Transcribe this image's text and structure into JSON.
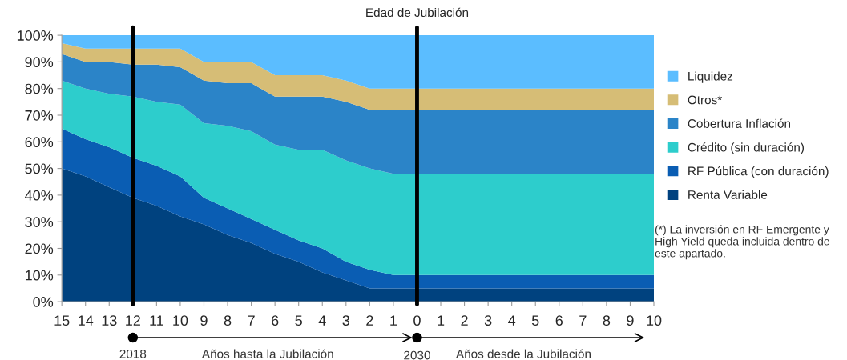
{
  "chart_data": {
    "type": "area",
    "stacked": true,
    "categories": [
      "15",
      "14",
      "13",
      "12",
      "11",
      "10",
      "9",
      "8",
      "7",
      "6",
      "5",
      "4",
      "3",
      "2",
      "1",
      "0",
      "1",
      "2",
      "3",
      "4",
      "5",
      "6",
      "7",
      "8",
      "9",
      "10"
    ],
    "series": [
      {
        "name": "Renta Variable",
        "color": "#00427f",
        "values": [
          50,
          47,
          43,
          39,
          36,
          32,
          29,
          25,
          22,
          18,
          15,
          11,
          8,
          5,
          5,
          5,
          5,
          5,
          5,
          5,
          5,
          5,
          5,
          5,
          5,
          5
        ]
      },
      {
        "name": "RF Pública (con duración)",
        "color": "#0a5db3",
        "values": [
          15,
          14,
          15,
          15,
          15,
          15,
          10,
          10,
          9,
          9,
          8,
          9,
          7,
          7,
          5,
          5,
          5,
          5,
          5,
          5,
          5,
          5,
          5,
          5,
          5,
          5
        ]
      },
      {
        "name": "Crédito (sin duración)",
        "color": "#2dcdcc",
        "values": [
          18,
          19,
          20,
          23,
          24,
          27,
          28,
          31,
          33,
          32,
          34,
          37,
          38,
          38,
          38,
          38,
          38,
          38,
          38,
          38,
          38,
          38,
          38,
          38,
          38,
          38
        ]
      },
      {
        "name": "Cobertura Inflación",
        "color": "#2b84c8",
        "values": [
          10,
          10,
          12,
          12,
          14,
          14,
          16,
          16,
          18,
          18,
          20,
          20,
          22,
          22,
          24,
          24,
          24,
          24,
          24,
          24,
          24,
          24,
          24,
          24,
          24,
          24
        ]
      },
      {
        "name": "Otros*",
        "color": "#d6bd76",
        "values": [
          4,
          5,
          5,
          6,
          6,
          7,
          7,
          8,
          8,
          8,
          8,
          8,
          8,
          8,
          8,
          8,
          8,
          8,
          8,
          8,
          8,
          8,
          8,
          8,
          8,
          8
        ]
      },
      {
        "name": "Liquidez",
        "color": "#5bbdff",
        "values": [
          3,
          5,
          5,
          5,
          5,
          5,
          10,
          10,
          10,
          15,
          15,
          15,
          17,
          20,
          20,
          20,
          20,
          20,
          20,
          20,
          20,
          20,
          20,
          20,
          20,
          20
        ]
      }
    ],
    "ylim": [
      0,
      100
    ],
    "yticks": [
      {
        "value": 0,
        "label": "0%"
      },
      {
        "value": 10,
        "label": "10%"
      },
      {
        "value": 20,
        "label": "20%"
      },
      {
        "value": 30,
        "label": "30%"
      },
      {
        "value": 40,
        "label": "40%"
      },
      {
        "value": 50,
        "label": "50%"
      },
      {
        "value": 60,
        "label": "60%"
      },
      {
        "value": 70,
        "label": "70%"
      },
      {
        "value": 80,
        "label": "80%"
      },
      {
        "value": 90,
        "label": "90%"
      },
      {
        "value": 100,
        "label": "100%"
      }
    ],
    "ref_lines": [
      {
        "axis": "x",
        "value": "12",
        "color": "#000000"
      },
      {
        "axis": "x",
        "value": "0",
        "label": "Edad de Jubilación",
        "color": "#000000"
      }
    ],
    "annotations": [
      "2018",
      "Años hasta la Jubilación",
      "2030",
      "Años desde la Jubilación",
      "(*) La inversión en RF Emergente y High Yield queda incluida dentro de este apartado."
    ],
    "legend": "right",
    "grid": false
  }
}
